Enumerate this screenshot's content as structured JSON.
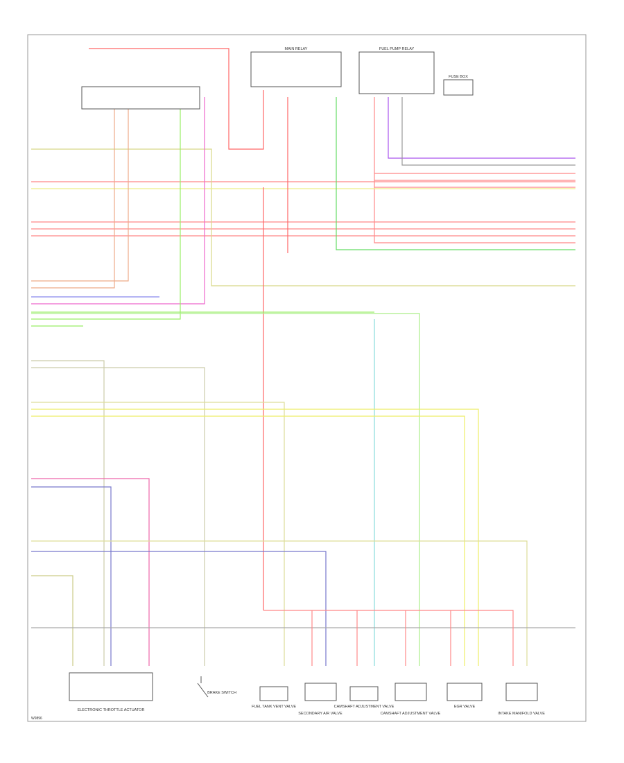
{
  "top_components": [
    {
      "label": "MAIN RELAY"
    },
    {
      "label": "FUEL PUMP RELAY"
    },
    {
      "label": "FUSE BOX"
    }
  ],
  "bottom_components": [
    {
      "label": "ELECTRONIC THROTTLE ACTUATOR"
    },
    {
      "label": "BRAKE SWITCH"
    },
    {
      "label": "FUEL TANK VENT VALVE"
    },
    {
      "label": "SECONDARY AIR VALVE"
    },
    {
      "label": "CAMSHAFT ADJUSTMENT VALVE"
    },
    {
      "label": "CAMSHAFT ADJUSTMENT VALVE"
    },
    {
      "label": "EGR VALVE"
    },
    {
      "label": "INTAKE MANIFOLD VALVE"
    }
  ],
  "footer": {
    "code": "W9896"
  }
}
